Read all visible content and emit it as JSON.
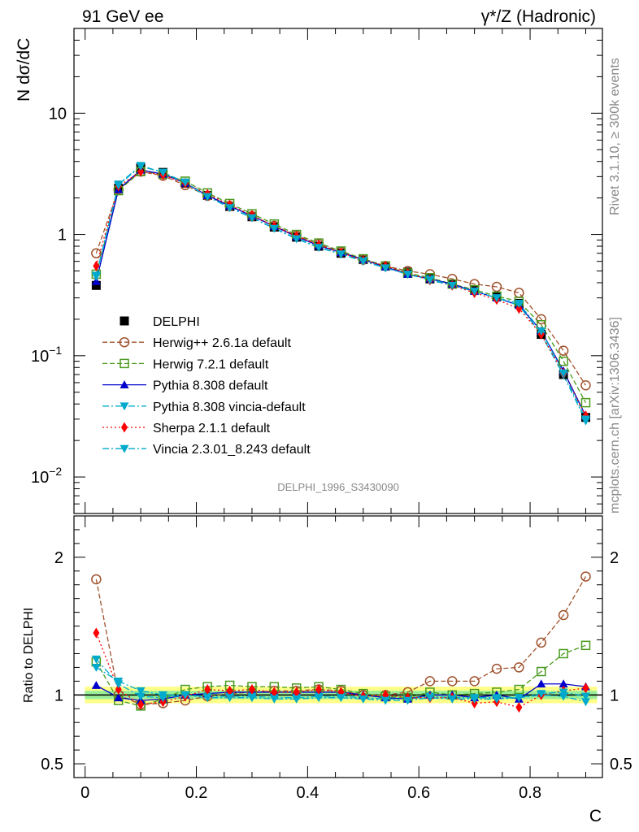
{
  "header": {
    "left": "91 GeV ee",
    "right": "γ*/Z (Hadronic)"
  },
  "side_texts": {
    "rivet": "Rivet 3.1.10, ≥ 300k events",
    "mcplots": "mcplots.cern.ch [arXiv:1306.3436]"
  },
  "chart_data": [
    {
      "type": "scatter",
      "panel": "main",
      "ylabel": "N dσ/dC",
      "yscale": "log",
      "ylim": [
        0.005,
        50
      ],
      "xlim": [
        -0.02,
        0.93
      ],
      "ytick_labels": [
        {
          "value": 10,
          "label": "10"
        },
        {
          "value": 1,
          "label": "1"
        },
        {
          "value": 0.1,
          "label": "10",
          "sup": "−1"
        },
        {
          "value": 0.01,
          "label": "10",
          "sup": "−2"
        }
      ],
      "watermark": "DELPHI_1996_S3430090",
      "x": [
        0.02,
        0.06,
        0.1,
        0.14,
        0.18,
        0.22,
        0.26,
        0.3,
        0.34,
        0.38,
        0.42,
        0.46,
        0.5,
        0.54,
        0.58,
        0.62,
        0.66,
        0.7,
        0.74,
        0.78,
        0.82,
        0.86,
        0.9
      ],
      "series": [
        {
          "name": "DELPHI",
          "color": "#000000",
          "marker": "square-filled",
          "line": "none",
          "values": [
            0.38,
            2.4,
            3.55,
            3.25,
            2.65,
            2.1,
            1.7,
            1.4,
            1.15,
            0.95,
            0.8,
            0.7,
            0.62,
            0.55,
            0.49,
            0.43,
            0.39,
            0.35,
            0.31,
            0.27,
            0.15,
            0.07,
            0.031
          ]
        },
        {
          "name": "Herwig++ 2.6.1a default",
          "color": "#a0522d",
          "marker": "circle-open",
          "line": "dashed",
          "values": [
            0.7,
            2.35,
            3.3,
            3.05,
            2.55,
            2.08,
            1.72,
            1.42,
            1.18,
            0.98,
            0.83,
            0.72,
            0.62,
            0.55,
            0.5,
            0.47,
            0.43,
            0.39,
            0.37,
            0.33,
            0.2,
            0.11,
            0.057
          ]
        },
        {
          "name": "Herwig 7.2.1 default",
          "color": "#4a9a1e",
          "marker": "square-open",
          "line": "dashed",
          "values": [
            0.47,
            2.3,
            3.3,
            3.15,
            2.75,
            2.2,
            1.8,
            1.48,
            1.22,
            1.0,
            0.85,
            0.73,
            0.63,
            0.55,
            0.48,
            0.44,
            0.39,
            0.35,
            0.31,
            0.28,
            0.18,
            0.09,
            0.041
          ]
        },
        {
          "name": "Pythia 8.308 default",
          "color": "#0000cc",
          "marker": "triangle-up-filled",
          "line": "solid",
          "values": [
            0.41,
            2.35,
            3.4,
            3.15,
            2.65,
            2.1,
            1.72,
            1.42,
            1.17,
            0.96,
            0.81,
            0.71,
            0.62,
            0.54,
            0.47,
            0.43,
            0.39,
            0.34,
            0.3,
            0.26,
            0.16,
            0.075,
            0.032
          ]
        },
        {
          "name": "Pythia 8.308 vincia-default",
          "color": "#00aacc",
          "marker": "triangle-down-filled",
          "line": "dashdot",
          "values": [
            0.46,
            2.6,
            3.7,
            3.25,
            2.65,
            2.05,
            1.68,
            1.38,
            1.13,
            0.93,
            0.79,
            0.69,
            0.61,
            0.53,
            0.47,
            0.43,
            0.38,
            0.34,
            0.3,
            0.26,
            0.15,
            0.069,
            0.029
          ]
        },
        {
          "name": "Sherpa 2.1.1 default",
          "color": "#ff0000",
          "marker": "diamond-filled",
          "line": "dotted",
          "values": [
            0.55,
            2.5,
            3.3,
            3.1,
            2.65,
            2.15,
            1.75,
            1.44,
            1.17,
            0.97,
            0.82,
            0.71,
            0.61,
            0.55,
            0.48,
            0.42,
            0.38,
            0.33,
            0.29,
            0.245,
            0.15,
            0.072,
            0.032
          ]
        },
        {
          "name": "Vincia 2.3.01_8.243 default",
          "color": "#00aacc",
          "marker": "triangle-down-filled",
          "line": "dashdot",
          "values": [
            0.45,
            2.55,
            3.65,
            3.25,
            2.7,
            2.05,
            1.66,
            1.37,
            1.12,
            0.92,
            0.78,
            0.69,
            0.6,
            0.53,
            0.47,
            0.42,
            0.38,
            0.34,
            0.3,
            0.27,
            0.16,
            0.072,
            0.03
          ]
        }
      ]
    },
    {
      "type": "line",
      "panel": "ratio",
      "ylabel": "Ratio to DELPHI",
      "xlabel": "C",
      "ylim": [
        0.4,
        2.3
      ],
      "xlim": [
        -0.02,
        0.93
      ],
      "ytick_labels": [
        {
          "value": 2,
          "label": "2"
        },
        {
          "value": 1,
          "label": "1"
        },
        {
          "value": 0.5,
          "label": "0.5"
        }
      ],
      "xtick_labels": [
        {
          "value": 0,
          "label": "0"
        },
        {
          "value": 0.2,
          "label": "0.2"
        },
        {
          "value": 0.4,
          "label": "0.4"
        },
        {
          "value": 0.6,
          "label": "0.6"
        },
        {
          "value": 0.8,
          "label": "0.8"
        }
      ],
      "band_inner": 0.03,
      "band_outer": 0.06,
      "x": [
        0.02,
        0.06,
        0.1,
        0.14,
        0.18,
        0.22,
        0.26,
        0.3,
        0.34,
        0.38,
        0.42,
        0.46,
        0.5,
        0.54,
        0.58,
        0.62,
        0.66,
        0.7,
        0.74,
        0.78,
        0.82,
        0.86,
        0.9
      ],
      "series": [
        {
          "name": "Herwig++ 2.6.1a default",
          "values": [
            1.84,
            1.0,
            0.93,
            0.94,
            0.96,
            0.99,
            1.01,
            1.02,
            1.03,
            1.03,
            1.04,
            1.03,
            1.0,
            1.0,
            1.02,
            1.1,
            1.1,
            1.1,
            1.19,
            1.2,
            1.38,
            1.58,
            1.86
          ]
        },
        {
          "name": "Herwig 7.2.1 default",
          "values": [
            1.24,
            0.96,
            0.92,
            0.97,
            1.04,
            1.06,
            1.07,
            1.06,
            1.06,
            1.05,
            1.06,
            1.04,
            1.01,
            0.99,
            0.98,
            1.02,
            1.0,
            1.01,
            1.02,
            1.04,
            1.17,
            1.3,
            1.36
          ]
        },
        {
          "name": "Pythia 8.308 default",
          "values": [
            1.07,
            0.98,
            0.96,
            0.97,
            1.0,
            1.01,
            1.02,
            1.02,
            1.02,
            1.02,
            1.02,
            1.02,
            1.0,
            0.98,
            0.97,
            1.0,
            1.0,
            0.98,
            1.0,
            0.97,
            1.08,
            1.08,
            1.06
          ]
        },
        {
          "name": "Pythia 8.308 vincia-default",
          "values": [
            1.2,
            1.1,
            1.03,
            1.0,
            1.0,
            0.99,
            0.99,
            0.99,
            0.98,
            0.98,
            0.99,
            0.99,
            0.98,
            0.97,
            0.97,
            0.99,
            0.98,
            0.98,
            0.98,
            0.98,
            1.0,
            0.99,
            0.95
          ]
        },
        {
          "name": "Sherpa 2.1.1 default",
          "values": [
            1.45,
            1.04,
            0.93,
            0.95,
            0.99,
            1.04,
            1.03,
            1.04,
            1.02,
            1.02,
            1.04,
            1.02,
            0.99,
            1.0,
            0.98,
            0.98,
            0.98,
            0.94,
            0.95,
            0.91,
            1.0,
            1.03,
            1.05
          ]
        },
        {
          "name": "Vincia 2.3.01_8.243 default",
          "values": [
            1.26,
            1.08,
            0.99,
            0.98,
            1.0,
            0.98,
            0.98,
            0.98,
            0.97,
            0.97,
            0.98,
            0.98,
            0.97,
            0.96,
            0.96,
            0.98,
            0.97,
            0.97,
            0.97,
            0.98,
            1.01,
            1.02,
            0.99
          ]
        }
      ]
    }
  ]
}
